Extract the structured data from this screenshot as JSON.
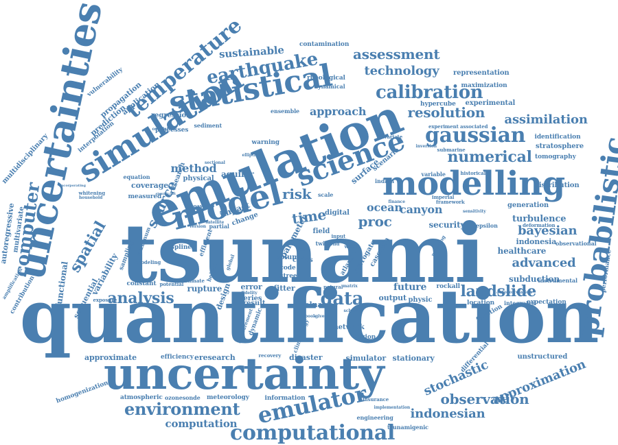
{
  "color": "#4a7fb0",
  "words": [
    {
      "t": "tsunami",
      "w": 10
    },
    {
      "t": "quantification",
      "w": 10
    },
    {
      "t": "uncertainty",
      "w": 7
    },
    {
      "t": "emulation",
      "w": 7
    },
    {
      "t": "uncertainties",
      "w": 6
    },
    {
      "t": "simulation",
      "w": 6
    },
    {
      "t": "modelling",
      "w": 5
    },
    {
      "t": "model",
      "w": 5
    },
    {
      "t": "probabilistic",
      "w": 5
    },
    {
      "t": "statistical",
      "w": 5
    },
    {
      "t": "science",
      "w": 5
    },
    {
      "t": "computational",
      "w": 4
    },
    {
      "t": "emulator",
      "w": 4
    },
    {
      "t": "environment",
      "w": 4
    },
    {
      "t": "gaussian",
      "w": 4
    },
    {
      "t": "temperature",
      "w": 4
    },
    {
      "t": "computer",
      "w": 4
    },
    {
      "t": "earthquake",
      "w": 4
    },
    {
      "t": "calibration",
      "w": 3
    },
    {
      "t": "data",
      "w": 3
    },
    {
      "t": "analysis",
      "w": 3
    },
    {
      "t": "spatial",
      "w": 3
    },
    {
      "t": "numerical",
      "w": 3
    },
    {
      "t": "landslide",
      "w": 3
    },
    {
      "t": "observation",
      "w": 3
    },
    {
      "t": "approximation",
      "w": 3
    },
    {
      "t": "stochastic",
      "w": 3
    },
    {
      "t": "assessment",
      "w": 3
    },
    {
      "t": "technology",
      "w": 3
    },
    {
      "t": "resolution",
      "w": 3
    },
    {
      "t": "assimilation",
      "w": 3
    },
    {
      "t": "bayesian",
      "w": 3
    },
    {
      "t": "indonesian",
      "w": 3
    },
    {
      "t": "advanced",
      "w": 3
    },
    {
      "t": "computation",
      "w": 3
    },
    {
      "t": "sustainable",
      "w": 3
    },
    {
      "t": "risk",
      "w": 3
    },
    {
      "t": "source",
      "w": 3
    },
    {
      "t": "time",
      "w": 3
    },
    {
      "t": "proc",
      "w": 3
    },
    {
      "t": "ocean",
      "w": 3
    },
    {
      "t": "canyon",
      "w": 3
    },
    {
      "t": "approach",
      "w": 3
    },
    {
      "t": "method",
      "w": 3
    },
    {
      "t": "security",
      "w": 2
    },
    {
      "t": "turbulence",
      "w": 2
    },
    {
      "t": "future",
      "w": 2
    },
    {
      "t": "functional",
      "w": 2
    },
    {
      "t": "sequential",
      "w": 2
    },
    {
      "t": "variability",
      "w": 2
    },
    {
      "t": "autoregressive",
      "w": 2
    },
    {
      "t": "multivariate",
      "w": 2
    },
    {
      "t": "propagation",
      "w": 2
    },
    {
      "t": "application",
      "w": 2
    },
    {
      "t": "prediction",
      "w": 2
    },
    {
      "t": "vulnerability",
      "w": 2
    },
    {
      "t": "interpolation",
      "w": 2
    },
    {
      "t": "multidisciplinary",
      "w": 2
    },
    {
      "t": "regression",
      "w": 2
    },
    {
      "t": "processes",
      "w": 2
    },
    {
      "t": "aquifer",
      "w": 2
    },
    {
      "t": "surface",
      "w": 2
    },
    {
      "t": "scenario",
      "w": 2
    },
    {
      "t": "experimental",
      "w": 2
    },
    {
      "t": "hypercube",
      "w": 2
    },
    {
      "t": "maximization",
      "w": 2
    },
    {
      "t": "representation",
      "w": 2
    },
    {
      "t": "identification",
      "w": 2
    },
    {
      "t": "stratosphere",
      "w": 2
    },
    {
      "t": "tomography",
      "w": 2
    },
    {
      "t": "distribution",
      "w": 2
    },
    {
      "t": "generation",
      "w": 2
    },
    {
      "t": "healthcare",
      "w": 2
    },
    {
      "t": "indonesia",
      "w": 2
    },
    {
      "t": "subduction",
      "w": 2
    },
    {
      "t": "expectation",
      "w": 2
    },
    {
      "t": "unstructured",
      "w": 2
    },
    {
      "t": "differential",
      "w": 2
    },
    {
      "t": "stationary",
      "w": 2
    },
    {
      "t": "simulator",
      "w": 2
    },
    {
      "t": "disaster",
      "w": 2
    },
    {
      "t": "eresearch",
      "w": 2
    },
    {
      "t": "efficiency",
      "w": 2
    },
    {
      "t": "approximate",
      "w": 2
    },
    {
      "t": "homogenization",
      "w": 2
    },
    {
      "t": "atmospheric",
      "w": 2
    },
    {
      "t": "ozonesonde",
      "w": 2
    },
    {
      "t": "meteorology",
      "w": 2
    },
    {
      "t": "information",
      "w": 2
    },
    {
      "t": "engineering",
      "w": 2
    },
    {
      "t": "tsunamigenic",
      "w": 2
    },
    {
      "t": "network",
      "w": 2
    },
    {
      "t": "region",
      "w": 2
    },
    {
      "t": "output",
      "w": 2
    },
    {
      "t": "physic",
      "w": 2
    },
    {
      "t": "rockall",
      "w": 2
    },
    {
      "t": "location",
      "w": 2
    },
    {
      "t": "function",
      "w": 2
    },
    {
      "t": "integrated",
      "w": 2
    },
    {
      "t": "observational",
      "w": 2
    },
    {
      "t": "instrumental",
      "w": 2
    },
    {
      "t": "performance",
      "w": 2
    },
    {
      "t": "rupture",
      "w": 2
    },
    {
      "t": "design",
      "w": 2
    },
    {
      "t": "constant",
      "w": 2
    },
    {
      "t": "potential",
      "w": 2
    },
    {
      "t": "estimate",
      "w": 2
    },
    {
      "t": "exposure",
      "w": 2
    },
    {
      "t": "sampling",
      "w": 2
    },
    {
      "t": "maximum",
      "w": 2
    },
    {
      "t": "coverage",
      "w": 2
    },
    {
      "t": "research",
      "w": 2
    },
    {
      "t": "measured",
      "w": 2
    },
    {
      "t": "physical",
      "w": 2
    },
    {
      "t": "equation",
      "w": 2
    },
    {
      "t": "sediment",
      "w": 2
    },
    {
      "t": "warning",
      "w": 2
    },
    {
      "t": "ensemble",
      "w": 2
    },
    {
      "t": "rheological",
      "w": 2
    },
    {
      "t": "dynamical",
      "w": 2
    },
    {
      "t": "contamination",
      "w": 2
    },
    {
      "t": "experiment",
      "w": 2
    },
    {
      "t": "associated",
      "w": 2
    },
    {
      "t": "submarine",
      "w": 2
    },
    {
      "t": "inversion",
      "w": 2
    },
    {
      "t": "variable",
      "w": 2
    },
    {
      "t": "historical",
      "w": 2
    },
    {
      "t": "bivariate",
      "w": 2
    },
    {
      "t": "parameter",
      "w": 2
    },
    {
      "t": "volume",
      "w": 2
    },
    {
      "t": "fitter",
      "w": 2
    },
    {
      "t": "error",
      "w": 2
    },
    {
      "t": "series",
      "w": 2
    },
    {
      "t": "result",
      "w": 2
    },
    {
      "t": "volna",
      "w": 2
    },
    {
      "t": "surrogate",
      "w": 2
    },
    {
      "t": "cascadia",
      "w": 2
    },
    {
      "t": "amplification",
      "w": 2
    },
    {
      "t": "contribution",
      "w": 2
    },
    {
      "t": "field",
      "w": 2
    },
    {
      "t": "recovery",
      "w": 1
    },
    {
      "t": "climatology",
      "w": 1
    },
    {
      "t": "dynamic",
      "w": 1
    },
    {
      "t": "measurement",
      "w": 1
    },
    {
      "t": "insurance",
      "w": 1
    },
    {
      "t": "implementation",
      "w": 1
    },
    {
      "t": "mapping",
      "w": 1
    },
    {
      "t": "deformation",
      "w": 1
    },
    {
      "t": "autocorrelation",
      "w": 1
    },
    {
      "t": "sensitivity",
      "w": 1
    },
    {
      "t": "epsilon",
      "w": 1
    },
    {
      "t": "framework",
      "w": 1
    },
    {
      "t": "imperial",
      "w": 1
    },
    {
      "t": "finance",
      "w": 1
    },
    {
      "t": "indian",
      "w": 1
    },
    {
      "t": "digital",
      "w": 1
    },
    {
      "t": "scale",
      "w": 1
    },
    {
      "t": "input",
      "w": 1
    },
    {
      "t": "wave",
      "w": 1
    },
    {
      "t": "trend",
      "w": 1
    },
    {
      "t": "real",
      "w": 1
    },
    {
      "t": "twin",
      "w": 1
    },
    {
      "t": "cities",
      "w": 1
    },
    {
      "t": "code",
      "w": 1
    },
    {
      "t": "street",
      "w": 1
    },
    {
      "t": "impact",
      "w": 1
    },
    {
      "t": "change",
      "w": 1
    },
    {
      "t": "efficient",
      "w": 1
    },
    {
      "t": "spline",
      "w": 1
    },
    {
      "t": "global",
      "w": 1
    },
    {
      "t": "height",
      "w": 1
    },
    {
      "t": "modeling",
      "w": 1
    },
    {
      "t": "whitening",
      "w": 1
    },
    {
      "t": "household",
      "w": 1
    },
    {
      "t": "oscillation",
      "w": 1
    },
    {
      "t": "elliptical",
      "w": 1
    },
    {
      "t": "sectional",
      "w": 1
    },
    {
      "t": "partial",
      "w": 1
    },
    {
      "t": "coastal",
      "w": 1
    },
    {
      "t": "version",
      "w": 1
    },
    {
      "t": "satellite",
      "w": 1
    },
    {
      "t": "fidelity",
      "w": 1
    },
    {
      "t": "atlantic",
      "w": 1
    },
    {
      "t": "natural",
      "w": 1
    },
    {
      "t": "matrix",
      "w": 1
    },
    {
      "t": "scheme",
      "w": 1
    },
    {
      "t": "book",
      "w": 1
    },
    {
      "t": "given",
      "w": 1
    },
    {
      "t": "incorporating",
      "w": 1
    },
    {
      "t": "significant",
      "w": 1
    }
  ]
}
